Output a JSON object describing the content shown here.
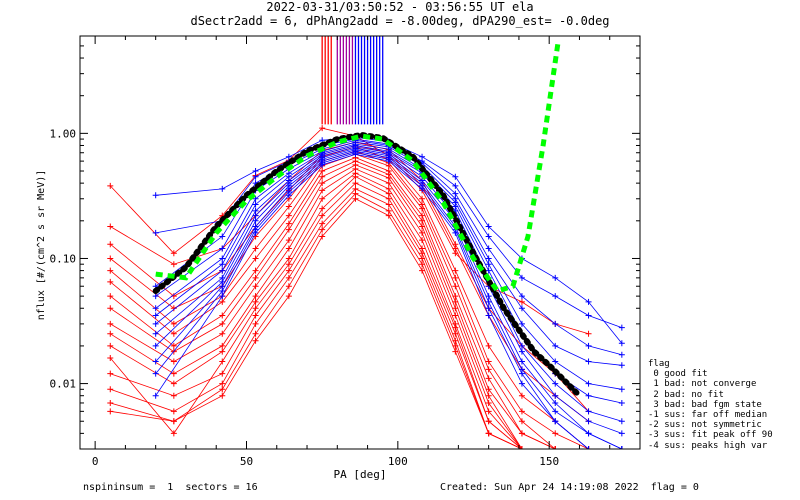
{
  "title": {
    "line1": "2022-03-31/03:50:52 - 03:56:55 UT ela",
    "line2": "dSectr2add = 6, dPhAng2add = -8.00deg, dPA290_est=  -0.0deg"
  },
  "footer": {
    "left": "nspininsum =  1  sectors = 16",
    "right": "Created: Sun Apr 24 14:19:08 2022  flag = 0"
  },
  "flag_legend": {
    "title": "flag",
    "items": [
      " 0 good fit",
      " 1 bad: not converge",
      " 2 bad: no fit",
      " 3 bad: bad fgm state",
      "-1 sus: far off median",
      "-2 sus: not symmetric",
      "-3 sus: fit peak off 90",
      "-4 sus: peaks high var"
    ]
  },
  "colors": {
    "red": "#ff0000",
    "blue": "#0000ff",
    "black": "#000000",
    "green": "#00ff00",
    "purple": "#a000a0"
  },
  "chart_data": {
    "type": "line",
    "xlabel": "PA [deg]",
    "ylabel": "nflux [#/(cm^2 s sr MeV)]",
    "xlim": [
      -5,
      180
    ],
    "ylim": [
      0.003,
      6.0
    ],
    "yscale": "log",
    "xticks": [
      0,
      50,
      100,
      150
    ],
    "yticks": [
      0.01,
      0.1,
      1.0
    ],
    "ytick_labels": [
      "0.01",
      "0.10",
      "1.00"
    ],
    "series": [
      {
        "color": "red",
        "x": [
          5,
          26,
          42,
          53,
          64,
          75,
          86,
          97,
          108,
          119,
          130,
          141,
          152,
          163
        ],
        "y": [
          0.38,
          0.11,
          0.22,
          0.46,
          0.61,
          1.1,
          0.95,
          0.66,
          0.35,
          0.11,
          0.06,
          0.045,
          0.03,
          0.025
        ]
      },
      {
        "color": "red",
        "x": [
          5,
          26,
          42,
          53,
          64,
          75,
          86,
          97,
          108,
          119,
          130,
          141,
          152,
          163
        ],
        "y": [
          0.18,
          0.09,
          0.12,
          0.22,
          0.42,
          0.73,
          0.85,
          0.74,
          0.42,
          0.13,
          0.04,
          0.02,
          0.012,
          0.006
        ]
      },
      {
        "color": "red",
        "x": [
          5,
          26,
          42,
          53,
          64,
          75,
          86,
          97,
          108,
          119,
          130,
          141,
          152,
          163
        ],
        "y": [
          0.13,
          0.05,
          0.08,
          0.18,
          0.35,
          0.68,
          0.8,
          0.7,
          0.38,
          0.12,
          0.035,
          0.013,
          0.008,
          0.005
        ]
      },
      {
        "color": "red",
        "x": [
          5,
          26,
          42,
          53,
          64,
          75,
          86,
          97,
          108,
          119,
          130,
          141,
          152,
          163
        ],
        "y": [
          0.1,
          0.04,
          0.06,
          0.15,
          0.3,
          0.65,
          0.78,
          0.62,
          0.3,
          0.08,
          0.02,
          0.008,
          0.005,
          0.003
        ]
      },
      {
        "color": "red",
        "x": [
          5,
          26,
          42,
          53,
          64,
          75,
          86,
          97,
          108,
          119,
          130,
          141,
          152,
          163
        ],
        "y": [
          0.08,
          0.03,
          0.05,
          0.12,
          0.26,
          0.6,
          0.72,
          0.58,
          0.27,
          0.07,
          0.015,
          0.006,
          0.004,
          0.003
        ]
      },
      {
        "color": "red",
        "x": [
          5,
          26,
          42,
          53,
          64,
          75,
          86,
          97,
          108,
          119,
          130,
          141,
          152,
          163
        ],
        "y": [
          0.065,
          0.025,
          0.045,
          0.1,
          0.22,
          0.55,
          0.68,
          0.55,
          0.25,
          0.06,
          0.013,
          0.005,
          0.003,
          0.003
        ]
      },
      {
        "color": "red",
        "x": [
          5,
          26,
          42,
          53,
          64,
          75,
          86,
          97,
          108,
          119,
          130,
          141,
          152,
          163
        ],
        "y": [
          0.05,
          0.02,
          0.035,
          0.08,
          0.19,
          0.5,
          0.64,
          0.5,
          0.22,
          0.05,
          0.011,
          0.004,
          0.003,
          0.003
        ]
      },
      {
        "color": "red",
        "x": [
          5,
          26,
          42,
          53,
          64,
          75,
          86,
          97,
          108,
          119,
          130,
          141,
          152,
          163
        ],
        "y": [
          0.04,
          0.018,
          0.03,
          0.07,
          0.17,
          0.45,
          0.6,
          0.47,
          0.2,
          0.045,
          0.009,
          0.004,
          0.003,
          0.003
        ]
      },
      {
        "color": "red",
        "x": [
          5,
          26,
          42,
          53,
          64,
          75,
          86,
          97,
          108,
          119,
          130,
          141,
          152,
          163
        ],
        "y": [
          0.03,
          0.015,
          0.025,
          0.06,
          0.14,
          0.4,
          0.56,
          0.44,
          0.18,
          0.04,
          0.008,
          0.003,
          0.003,
          0.003
        ]
      },
      {
        "color": "red",
        "x": [
          5,
          26,
          42,
          53,
          64,
          75,
          86,
          97,
          108,
          119,
          130,
          141,
          152,
          163
        ],
        "y": [
          0.025,
          0.012,
          0.02,
          0.05,
          0.12,
          0.35,
          0.52,
          0.4,
          0.16,
          0.035,
          0.007,
          0.003,
          0.003,
          0.003
        ]
      },
      {
        "color": "red",
        "x": [
          5,
          26,
          42,
          53,
          64,
          75,
          86,
          97,
          108,
          119,
          130,
          141,
          152,
          163
        ],
        "y": [
          0.02,
          0.01,
          0.018,
          0.045,
          0.1,
          0.3,
          0.48,
          0.36,
          0.14,
          0.03,
          0.006,
          0.003,
          0.003,
          0.003
        ]
      },
      {
        "color": "red",
        "x": [
          5,
          26,
          42,
          53,
          64,
          75,
          86,
          97,
          108,
          119,
          130,
          141,
          152,
          163
        ],
        "y": [
          0.016,
          0.004,
          0.015,
          0.04,
          0.09,
          0.25,
          0.45,
          0.33,
          0.12,
          0.028,
          0.005,
          0.003,
          0.003,
          0.003
        ]
      },
      {
        "color": "red",
        "x": [
          5,
          26,
          42,
          53,
          64,
          75,
          86,
          97,
          108,
          119,
          130,
          141,
          152,
          163
        ],
        "y": [
          0.012,
          0.008,
          0.012,
          0.035,
          0.08,
          0.22,
          0.4,
          0.3,
          0.11,
          0.025,
          0.005,
          0.003,
          0.003,
          0.003
        ]
      },
      {
        "color": "red",
        "x": [
          5,
          26,
          42,
          53,
          64,
          75,
          86,
          97,
          108,
          119,
          130,
          141,
          152,
          163
        ],
        "y": [
          0.009,
          0.006,
          0.01,
          0.03,
          0.07,
          0.19,
          0.36,
          0.27,
          0.1,
          0.022,
          0.004,
          0.003,
          0.003,
          0.003
        ]
      },
      {
        "color": "red",
        "x": [
          5,
          26,
          42,
          53,
          64,
          75,
          86,
          97,
          108,
          119,
          130,
          141,
          152,
          163
        ],
        "y": [
          0.007,
          0.005,
          0.009,
          0.025,
          0.06,
          0.17,
          0.33,
          0.24,
          0.09,
          0.02,
          0.004,
          0.003,
          0.003,
          0.003
        ]
      },
      {
        "color": "red",
        "x": [
          5,
          26,
          42,
          53,
          64,
          75,
          86,
          97,
          108,
          119,
          130,
          141,
          152,
          163
        ],
        "y": [
          0.006,
          0.005,
          0.008,
          0.022,
          0.05,
          0.15,
          0.3,
          0.22,
          0.08,
          0.018,
          0.004,
          0.003,
          0.003,
          0.003
        ]
      },
      {
        "color": "blue",
        "x": [
          20,
          42,
          53,
          64,
          75,
          86,
          97,
          108,
          119,
          130,
          141,
          152,
          163,
          174
        ],
        "y": [
          0.32,
          0.36,
          0.5,
          0.65,
          0.88,
          0.93,
          0.86,
          0.65,
          0.45,
          0.18,
          0.1,
          0.07,
          0.045,
          0.021
        ]
      },
      {
        "color": "blue",
        "x": [
          20,
          42,
          53,
          64,
          75,
          86,
          97,
          108,
          119,
          130,
          141,
          152,
          163,
          174
        ],
        "y": [
          0.16,
          0.2,
          0.45,
          0.6,
          0.8,
          0.9,
          0.82,
          0.6,
          0.38,
          0.15,
          0.07,
          0.05,
          0.035,
          0.028
        ]
      },
      {
        "color": "blue",
        "x": [
          20,
          42,
          53,
          64,
          75,
          86,
          97,
          108,
          119,
          130,
          141,
          152,
          163,
          174
        ],
        "y": [
          0.06,
          0.15,
          0.4,
          0.56,
          0.75,
          0.88,
          0.8,
          0.58,
          0.33,
          0.12,
          0.05,
          0.03,
          0.02,
          0.017
        ]
      },
      {
        "color": "blue",
        "x": [
          20,
          42,
          53,
          64,
          75,
          86,
          97,
          108,
          119,
          130,
          141,
          152,
          163,
          174
        ],
        "y": [
          0.05,
          0.12,
          0.35,
          0.52,
          0.72,
          0.85,
          0.78,
          0.55,
          0.3,
          0.1,
          0.04,
          0.02,
          0.015,
          0.014
        ]
      },
      {
        "color": "blue",
        "x": [
          20,
          42,
          53,
          64,
          75,
          86,
          97,
          108,
          119,
          130,
          141,
          152,
          163,
          174
        ],
        "y": [
          0.04,
          0.1,
          0.3,
          0.48,
          0.7,
          0.82,
          0.75,
          0.52,
          0.28,
          0.09,
          0.03,
          0.015,
          0.01,
          0.009
        ]
      },
      {
        "color": "blue",
        "x": [
          20,
          42,
          53,
          64,
          75,
          86,
          97,
          108,
          119,
          130,
          141,
          152,
          163,
          174
        ],
        "y": [
          0.035,
          0.09,
          0.27,
          0.45,
          0.68,
          0.8,
          0.72,
          0.5,
          0.26,
          0.08,
          0.025,
          0.012,
          0.008,
          0.007
        ]
      },
      {
        "color": "blue",
        "x": [
          20,
          42,
          53,
          64,
          75,
          86,
          97,
          108,
          119,
          130,
          141,
          152,
          163,
          174
        ],
        "y": [
          0.03,
          0.08,
          0.24,
          0.42,
          0.66,
          0.78,
          0.7,
          0.48,
          0.24,
          0.07,
          0.02,
          0.01,
          0.006,
          0.005
        ]
      },
      {
        "color": "blue",
        "x": [
          20,
          42,
          53,
          64,
          75,
          86,
          97,
          108,
          119,
          130,
          141,
          152,
          163,
          174
        ],
        "y": [
          0.025,
          0.07,
          0.22,
          0.4,
          0.64,
          0.76,
          0.68,
          0.45,
          0.22,
          0.06,
          0.018,
          0.008,
          0.005,
          0.004
        ]
      },
      {
        "color": "blue",
        "x": [
          20,
          42,
          53,
          64,
          75,
          86,
          97,
          108,
          119,
          130,
          141,
          152,
          163,
          174
        ],
        "y": [
          0.02,
          0.065,
          0.2,
          0.38,
          0.62,
          0.74,
          0.66,
          0.42,
          0.2,
          0.05,
          0.015,
          0.007,
          0.004,
          0.003
        ]
      },
      {
        "color": "blue",
        "x": [
          20,
          42,
          53,
          64,
          75,
          86,
          97,
          108,
          119,
          130,
          141,
          152,
          163,
          174
        ],
        "y": [
          0.015,
          0.06,
          0.18,
          0.36,
          0.6,
          0.72,
          0.64,
          0.4,
          0.18,
          0.045,
          0.013,
          0.006,
          0.004,
          0.003
        ]
      },
      {
        "color": "blue",
        "x": [
          20,
          42,
          53,
          64,
          75,
          86,
          97,
          108,
          119,
          130,
          141,
          152,
          163,
          174
        ],
        "y": [
          0.012,
          0.055,
          0.17,
          0.34,
          0.58,
          0.7,
          0.62,
          0.38,
          0.17,
          0.04,
          0.012,
          0.005,
          0.003,
          0.003
        ]
      },
      {
        "color": "blue",
        "x": [
          20,
          42,
          53,
          64,
          75,
          86,
          97,
          108,
          119,
          130,
          141,
          152,
          163,
          174
        ],
        "y": [
          0.008,
          0.05,
          0.16,
          0.32,
          0.56,
          0.68,
          0.6,
          0.36,
          0.16,
          0.035,
          0.01,
          0.005,
          0.003,
          0.003
        ]
      }
    ],
    "fit_curves": [
      {
        "color": "black",
        "style": "dotted",
        "x": [
          20,
          30,
          40,
          50,
          60,
          70,
          80,
          88,
          95,
          105,
          115,
          125,
          135,
          145,
          150,
          160
        ],
        "y": [
          0.055,
          0.085,
          0.18,
          0.32,
          0.5,
          0.72,
          0.9,
          0.97,
          0.92,
          0.65,
          0.32,
          0.11,
          0.04,
          0.018,
          0.014,
          0.008
        ]
      },
      {
        "color": "green",
        "style": "dashed",
        "x": [
          20,
          30,
          40,
          50,
          60,
          70,
          80,
          88,
          95,
          105,
          115,
          125,
          133,
          138,
          143,
          148,
          153
        ],
        "y": [
          0.075,
          0.07,
          0.16,
          0.29,
          0.45,
          0.66,
          0.85,
          0.95,
          0.9,
          0.6,
          0.28,
          0.1,
          0.055,
          0.06,
          0.15,
          0.8,
          5.5
        ]
      }
    ],
    "vertical_markers": [
      {
        "color": "red",
        "x": [
          75,
          76,
          77,
          78
        ]
      },
      {
        "color": "purple",
        "x": [
          80,
          81,
          82,
          83,
          84,
          85
        ]
      },
      {
        "color": "blue",
        "x": [
          86,
          87,
          88,
          89,
          90,
          91,
          92,
          93,
          94,
          95
        ]
      }
    ],
    "marker_range": [
      1.18,
      6.0
    ]
  }
}
